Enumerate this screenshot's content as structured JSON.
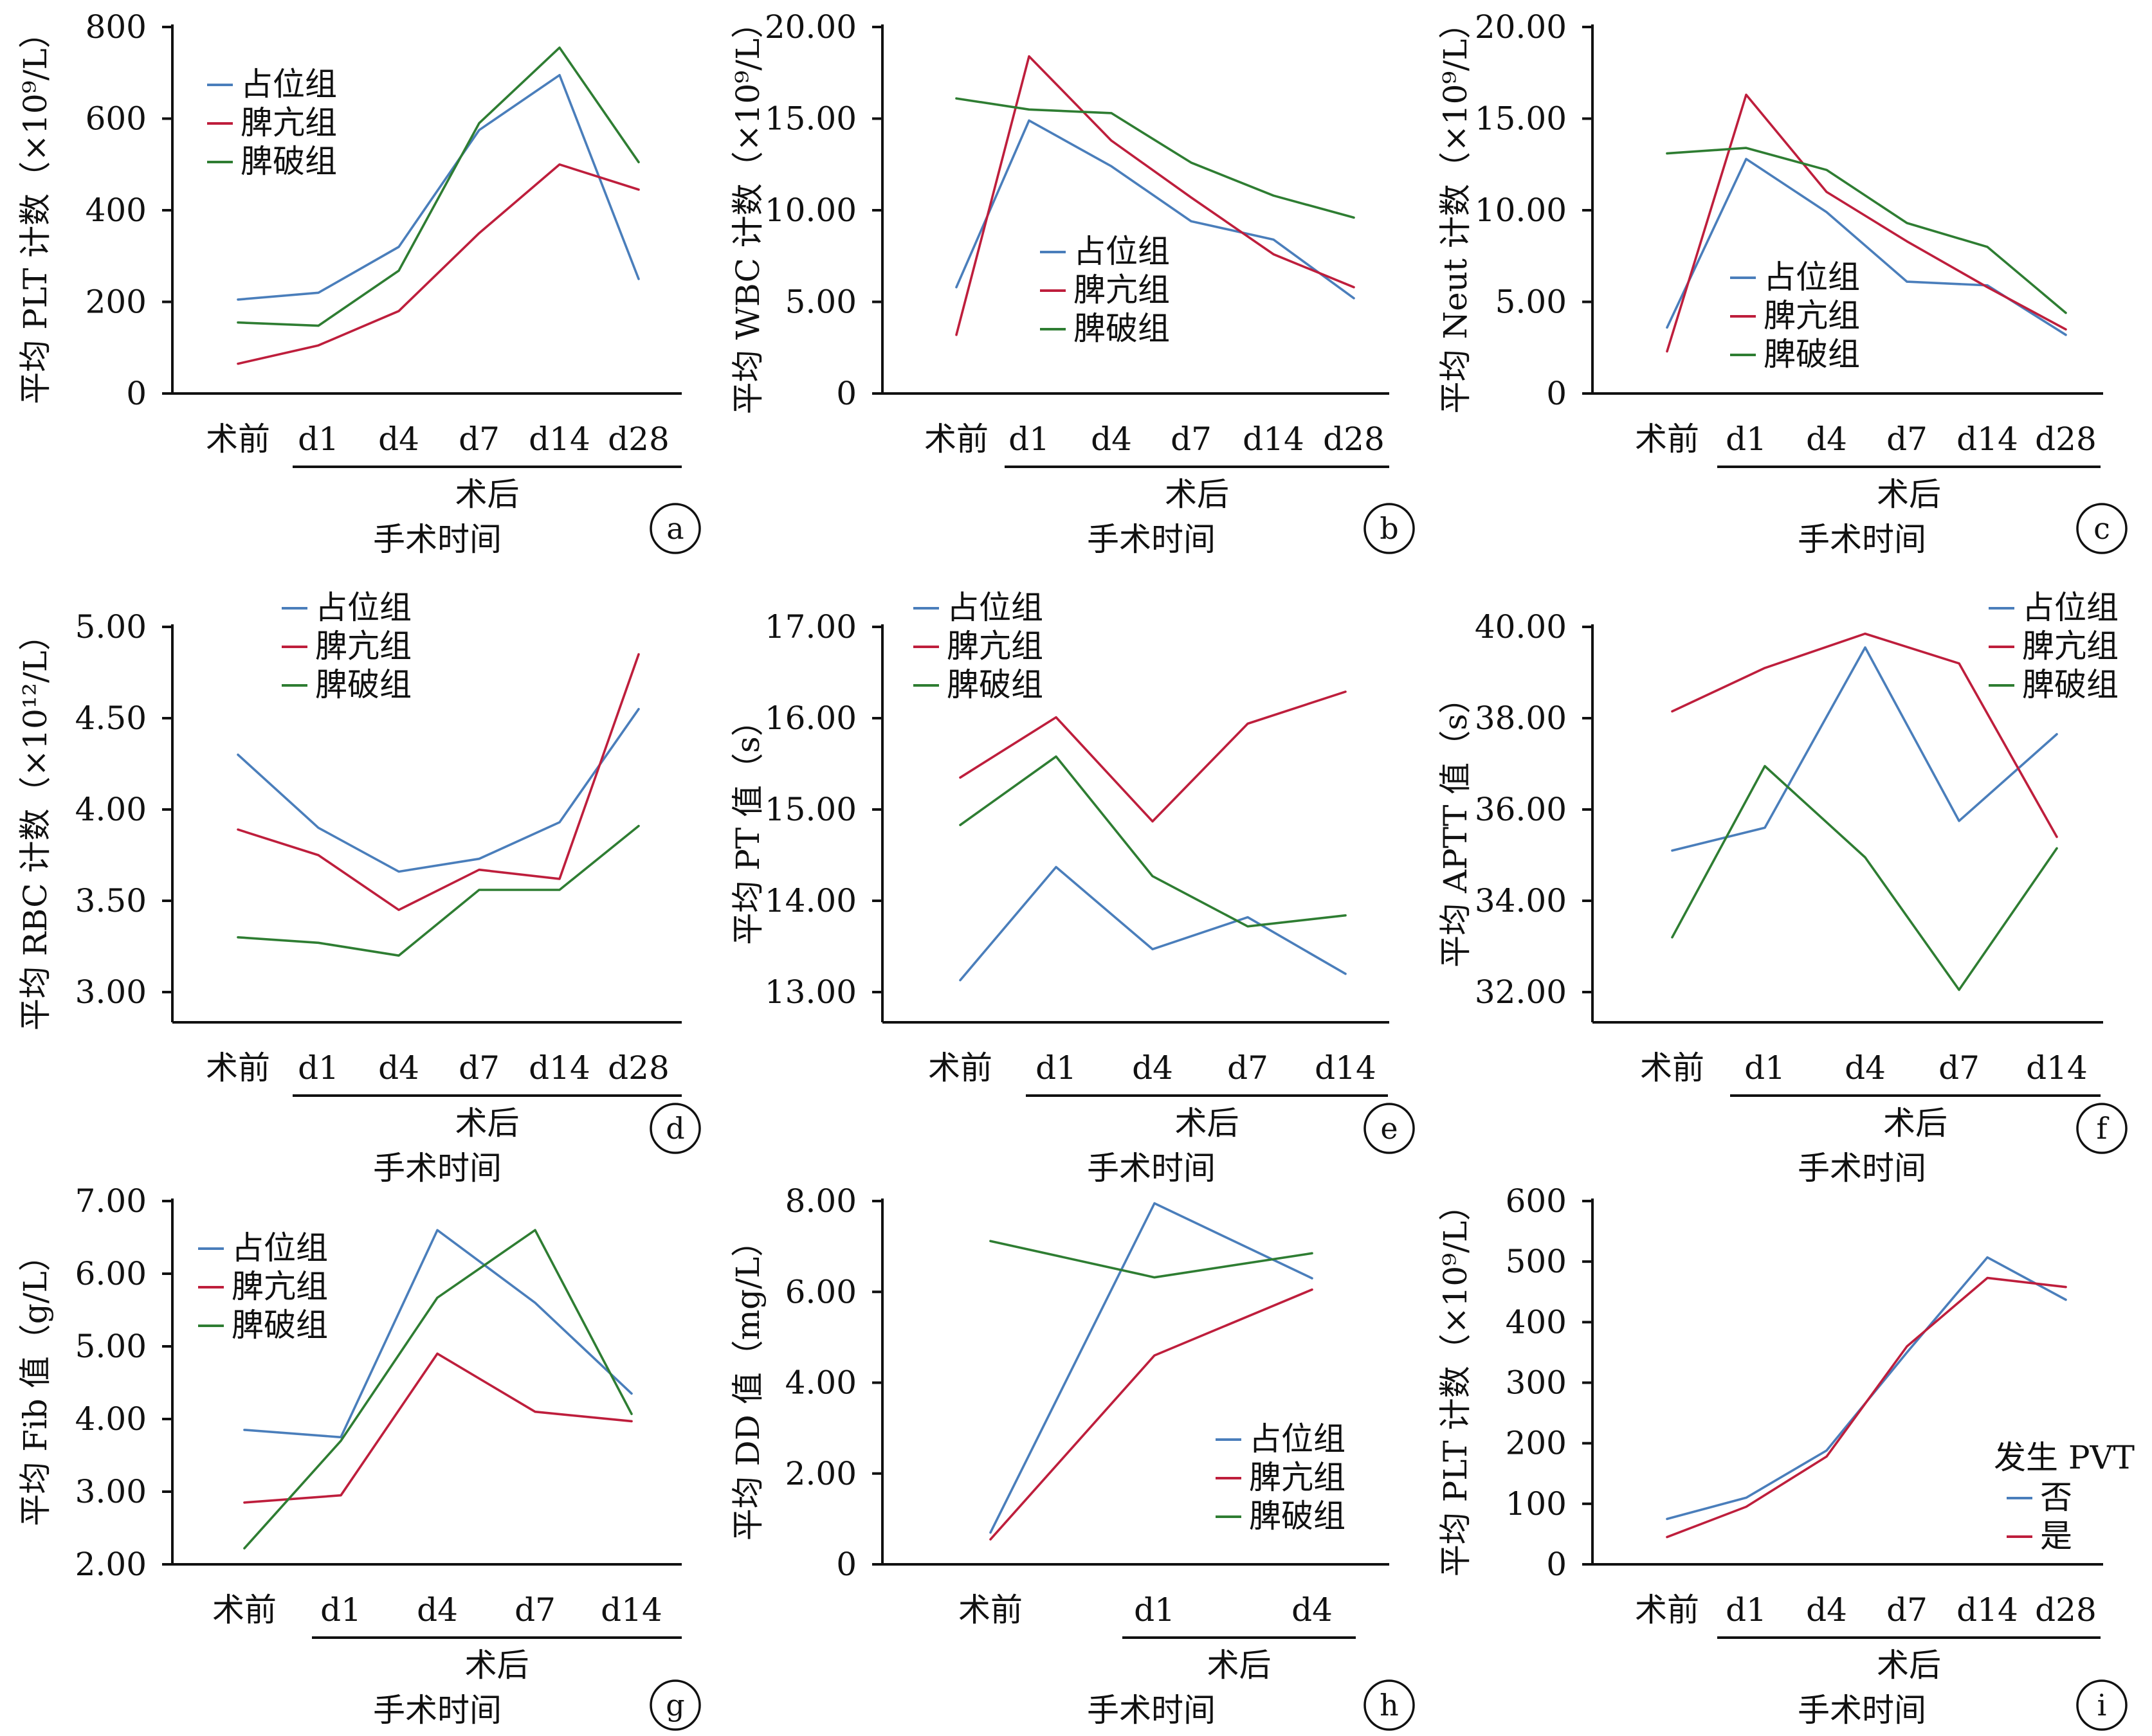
{
  "colors": {
    "blue": "#4a7ebb",
    "red": "#be1e3c",
    "green": "#2e7d32",
    "axis": "#111111"
  },
  "chart_data": [
    {
      "type": "line",
      "panel": "a",
      "ylabel": "平均 PLT 计数（×10⁹/L）",
      "yticks": [
        "0",
        "200",
        "400",
        "600",
        "800"
      ],
      "ylim": [
        0,
        800
      ],
      "categories": [
        "术前",
        "d1",
        "d4",
        "d7",
        "d14",
        "d28"
      ],
      "group_label": "术后",
      "xlabel": "手术时间",
      "legend_title": "",
      "legend_placement": "top-left",
      "series": [
        {
          "name": "占位组",
          "color": "#4a7ebb",
          "values": [
            205,
            220,
            320,
            575,
            695,
            250
          ]
        },
        {
          "name": "脾亢组",
          "color": "#be1e3c",
          "values": [
            65,
            105,
            180,
            350,
            500,
            445
          ]
        },
        {
          "name": "脾破组",
          "color": "#2e7d32",
          "values": [
            155,
            148,
            268,
            590,
            755,
            505
          ]
        }
      ]
    },
    {
      "type": "line",
      "panel": "b",
      "ylabel": "平均 WBC 计数（×10⁹/L）",
      "yticks": [
        "0",
        "5.00",
        "10.00",
        "15.00",
        "20.00"
      ],
      "ylim": [
        0,
        20
      ],
      "categories": [
        "术前",
        "d1",
        "d4",
        "d7",
        "d14",
        "d28"
      ],
      "group_label": "术后",
      "xlabel": "手术时间",
      "legend_title": "",
      "legend_placement": "center",
      "series": [
        {
          "name": "占位组",
          "color": "#4a7ebb",
          "values": [
            5.8,
            14.9,
            12.4,
            9.4,
            8.4,
            5.2
          ]
        },
        {
          "name": "脾亢组",
          "color": "#be1e3c",
          "values": [
            3.2,
            18.4,
            13.8,
            10.7,
            7.6,
            5.8
          ]
        },
        {
          "name": "脾破组",
          "color": "#2e7d32",
          "values": [
            16.1,
            15.5,
            15.3,
            12.6,
            10.8,
            9.6
          ]
        }
      ]
    },
    {
      "type": "line",
      "panel": "c",
      "ylabel": "平均 Neut 计数（×10⁹/L）",
      "yticks": [
        "0",
        "5.00",
        "10.00",
        "15.00",
        "20.00"
      ],
      "ylim": [
        0,
        20
      ],
      "categories": [
        "术前",
        "d1",
        "d4",
        "d7",
        "d14",
        "d28"
      ],
      "group_label": "术后",
      "xlabel": "手术时间",
      "legend_title": "",
      "legend_placement": "bottom-right",
      "series": [
        {
          "name": "占位组",
          "color": "#4a7ebb",
          "values": [
            3.6,
            12.8,
            9.9,
            6.1,
            5.9,
            3.2
          ]
        },
        {
          "name": "脾亢组",
          "color": "#be1e3c",
          "values": [
            2.3,
            16.3,
            11.0,
            8.3,
            5.8,
            3.5
          ]
        },
        {
          "name": "脾破组",
          "color": "#2e7d32",
          "values": [
            13.1,
            13.4,
            12.2,
            9.3,
            8.0,
            4.4
          ]
        }
      ]
    },
    {
      "type": "line",
      "panel": "d",
      "ylabel": "平均 RBC 计数（×10¹²/L）",
      "yticks": [
        "3.00",
        "3.50",
        "4.00",
        "4.50",
        "5.00"
      ],
      "ylim": [
        3,
        5
      ],
      "categories": [
        "术前",
        "d1",
        "d4",
        "d7",
        "d14",
        "d28"
      ],
      "group_label": "术后",
      "xlabel": "手术时间",
      "legend_title": "",
      "legend_placement": "top-left",
      "series": [
        {
          "name": "占位组",
          "color": "#4a7ebb",
          "values": [
            4.3,
            3.9,
            3.66,
            3.73,
            3.93,
            4.55
          ]
        },
        {
          "name": "脾亢组",
          "color": "#be1e3c",
          "values": [
            3.89,
            3.75,
            3.45,
            3.67,
            3.62,
            4.85
          ]
        },
        {
          "name": "脾破组",
          "color": "#2e7d32",
          "values": [
            3.3,
            3.27,
            3.2,
            3.56,
            3.56,
            3.91
          ]
        }
      ]
    },
    {
      "type": "line",
      "panel": "e",
      "ylabel": "平均 PT 值（s）",
      "yticks": [
        "13.00",
        "14.00",
        "15.00",
        "16.00",
        "17.00"
      ],
      "ylim": [
        13,
        17
      ],
      "categories": [
        "术前",
        "d1",
        "d4",
        "d7",
        "d14"
      ],
      "group_label": "术后",
      "xlabel": "手术时间",
      "legend_title": "",
      "legend_placement": "top-left",
      "series": [
        {
          "name": "占位组",
          "color": "#4a7ebb",
          "values": [
            13.13,
            14.37,
            13.47,
            13.82,
            13.2
          ]
        },
        {
          "name": "脾亢组",
          "color": "#be1e3c",
          "values": [
            15.35,
            16.01,
            14.87,
            15.94,
            16.29
          ]
        },
        {
          "name": "脾破组",
          "color": "#2e7d32",
          "values": [
            14.83,
            15.58,
            14.27,
            13.72,
            13.84
          ]
        }
      ]
    },
    {
      "type": "line",
      "panel": "f",
      "ylabel": "平均 APTT 值（s）",
      "yticks": [
        "32.00",
        "34.00",
        "36.00",
        "38.00",
        "40.00"
      ],
      "ylim": [
        32,
        40
      ],
      "categories": [
        "术前",
        "d1",
        "d4",
        "d7",
        "d14"
      ],
      "group_label": "术后",
      "xlabel": "手术时间",
      "legend_title": "",
      "legend_placement": "top-right",
      "series": [
        {
          "name": "占位组",
          "color": "#4a7ebb",
          "values": [
            35.1,
            35.6,
            39.55,
            35.75,
            37.65
          ]
        },
        {
          "name": "脾亢组",
          "color": "#be1e3c",
          "values": [
            38.15,
            39.1,
            39.85,
            39.2,
            35.4
          ]
        },
        {
          "name": "脾破组",
          "color": "#2e7d32",
          "values": [
            33.2,
            36.95,
            34.95,
            32.05,
            35.15
          ]
        }
      ]
    },
    {
      "type": "line",
      "panel": "g",
      "ylabel": "平均 Fib 值（g/L）",
      "yticks": [
        "2.00",
        "3.00",
        "4.00",
        "5.00",
        "6.00",
        "7.00"
      ],
      "ylim": [
        2,
        7
      ],
      "categories": [
        "术前",
        "d1",
        "d4",
        "d7",
        "d14"
      ],
      "group_label": "术后",
      "xlabel": "手术时间",
      "legend_title": "",
      "legend_placement": "top-left",
      "series": [
        {
          "name": "占位组",
          "color": "#4a7ebb",
          "values": [
            3.85,
            3.75,
            6.6,
            5.6,
            4.35
          ]
        },
        {
          "name": "脾亢组",
          "color": "#be1e3c",
          "values": [
            2.85,
            2.95,
            4.9,
            4.1,
            3.97
          ]
        },
        {
          "name": "脾破组",
          "color": "#2e7d32",
          "values": [
            2.22,
            3.7,
            5.67,
            6.6,
            4.07
          ]
        }
      ]
    },
    {
      "type": "line",
      "panel": "h",
      "ylabel": "平均 DD 值（mg/L）",
      "yticks": [
        "0",
        "2.00",
        "4.00",
        "6.00",
        "8.00"
      ],
      "ylim": [
        0,
        8
      ],
      "categories": [
        "术前",
        "d1",
        "d4"
      ],
      "group_label": "术后",
      "xlabel": "手术时间",
      "legend_title": "",
      "legend_placement": "bottom-right",
      "series": [
        {
          "name": "占位组",
          "color": "#4a7ebb",
          "values": [
            0.7,
            7.95,
            6.3
          ]
        },
        {
          "name": "脾亢组",
          "color": "#be1e3c",
          "values": [
            0.55,
            4.6,
            6.05
          ]
        },
        {
          "name": "脾破组",
          "color": "#2e7d32",
          "values": [
            7.12,
            6.32,
            6.85
          ]
        }
      ]
    },
    {
      "type": "line",
      "panel": "i",
      "ylabel": "平均 PLT 计数（×10⁹/L）",
      "yticks": [
        "0",
        "100",
        "200",
        "300",
        "400",
        "500",
        "600"
      ],
      "ylim": [
        0,
        600
      ],
      "categories": [
        "术前",
        "d1",
        "d4",
        "d7",
        "d14",
        "d28"
      ],
      "group_label": "术后",
      "xlabel": "手术时间",
      "legend_title": "发生 PVT",
      "legend_placement": "bottom-right",
      "series": [
        {
          "name": "否",
          "color": "#4a7ebb",
          "values": [
            75,
            110,
            188,
            350,
            507,
            437
          ]
        },
        {
          "name": "是",
          "color": "#be1e3c",
          "values": [
            45,
            95,
            178,
            360,
            473,
            458
          ]
        }
      ]
    }
  ]
}
